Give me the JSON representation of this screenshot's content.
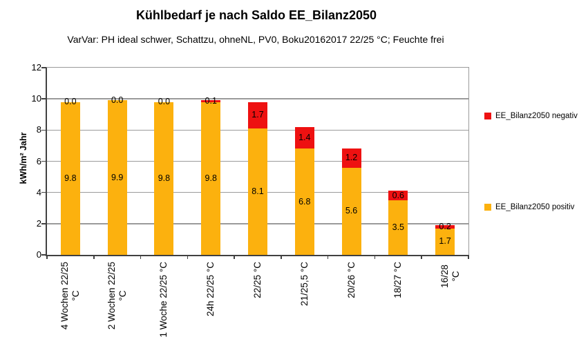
{
  "chart_data": {
    "type": "bar",
    "stacked": true,
    "title": "Kühlbedarf je nach Saldo EE_Bilanz2050",
    "subtitle": "VarVar: PH ideal schwer, Schattzu, ohneNL, PV0, Boku20162017 22/25 °C; Feuchte frei",
    "categories": [
      "4 Wochen 22/25\n°C",
      "2 Wochen 22/25\n°C",
      "1 Woche 22/25 °C",
      "24h 22/25 °C",
      "22/25 °C",
      "21/25,5 °C",
      "20/26 °C",
      "18/27 °C",
      "16/28 °C"
    ],
    "series": [
      {
        "name": "EE_Bilanz2050 positiv",
        "color": "#FCB10E",
        "values": [
          9.8,
          9.9,
          9.8,
          9.8,
          8.1,
          6.8,
          5.6,
          3.5,
          1.7
        ]
      },
      {
        "name": "EE_Bilanz2050 negativ",
        "color": "#EE1111",
        "values": [
          0.0,
          0.0,
          0.0,
          0.1,
          1.7,
          1.4,
          1.2,
          0.6,
          0.2
        ]
      }
    ],
    "xlabel": "",
    "ylabel": "kWh/m² Jahr",
    "ylim": [
      0,
      12
    ],
    "ytick_step": 2,
    "grid": true,
    "data_labels": true,
    "legend_position": "right",
    "colors": {
      "axis": "#404040",
      "gridline": "#9a9a9a"
    }
  }
}
